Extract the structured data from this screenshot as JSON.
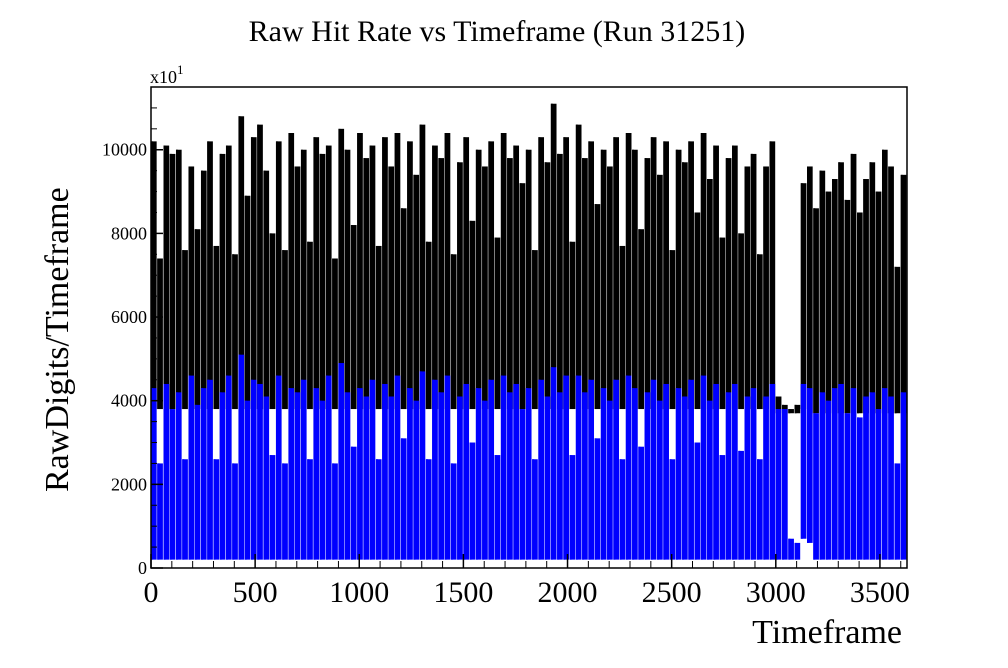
{
  "chart_data": {
    "type": "bar",
    "title": "Raw Hit Rate vs Timeframe (Run 31251)",
    "xlabel": "Timeframe",
    "ylabel": "RawDigits/Timeframe",
    "y_multiplier": "x10",
    "y_multiplier_exp": "1",
    "xlim": [
      0,
      3630
    ],
    "ylim": [
      0,
      11500
    ],
    "xticks": [
      0,
      500,
      1000,
      1500,
      2000,
      2500,
      3000,
      3500
    ],
    "xtick_labels": [
      "0",
      "500",
      "1000",
      "1500",
      "2000",
      "2500",
      "3000",
      "3500"
    ],
    "yticks": [
      0,
      2000,
      4000,
      6000,
      8000,
      10000
    ],
    "ytick_labels": [
      "0",
      "2000",
      "4000",
      "6000",
      "8000",
      "10000"
    ],
    "grid": false,
    "legend": null,
    "series": [
      {
        "color": "#000000",
        "x": [
          0,
          30,
          60,
          90,
          120,
          150,
          180,
          210,
          240,
          270,
          300,
          330,
          360,
          390,
          420,
          450,
          480,
          510,
          540,
          570,
          600,
          630,
          660,
          690,
          720,
          750,
          780,
          810,
          840,
          870,
          900,
          930,
          960,
          990,
          1020,
          1050,
          1080,
          1110,
          1140,
          1170,
          1200,
          1230,
          1260,
          1290,
          1320,
          1350,
          1380,
          1410,
          1440,
          1470,
          1500,
          1530,
          1560,
          1590,
          1620,
          1650,
          1680,
          1710,
          1740,
          1770,
          1800,
          1830,
          1860,
          1890,
          1920,
          1950,
          1980,
          2010,
          2040,
          2070,
          2100,
          2130,
          2160,
          2190,
          2220,
          2250,
          2280,
          2310,
          2340,
          2370,
          2400,
          2430,
          2460,
          2490,
          2520,
          2550,
          2580,
          2610,
          2640,
          2670,
          2700,
          2730,
          2760,
          2790,
          2820,
          2850,
          2880,
          2910,
          2940,
          2970,
          3000,
          3030,
          3060,
          3090,
          3120,
          3150,
          3180,
          3210,
          3240,
          3270,
          3300,
          3330,
          3360,
          3390,
          3420,
          3450,
          3480,
          3510,
          3540,
          3570,
          3600
        ],
        "min": [
          3800,
          3800,
          3800,
          3800,
          3800,
          3800,
          3800,
          3800,
          3800,
          3800,
          3800,
          3800,
          3800,
          3800,
          3800,
          3800,
          3800,
          3800,
          3800,
          3800,
          3800,
          3800,
          3800,
          3800,
          3800,
          3800,
          3800,
          3800,
          3800,
          3800,
          3800,
          3800,
          3800,
          3800,
          3800,
          3800,
          3800,
          3800,
          3800,
          3800,
          3800,
          3800,
          3800,
          3800,
          3800,
          3800,
          3800,
          3800,
          3800,
          3800,
          3800,
          3800,
          3800,
          3800,
          3800,
          3800,
          3800,
          3800,
          3800,
          3800,
          3800,
          3800,
          3800,
          3800,
          3800,
          3800,
          3800,
          3800,
          3800,
          3800,
          3800,
          3800,
          3800,
          3800,
          3800,
          3800,
          3800,
          3800,
          3800,
          3800,
          3800,
          3800,
          3800,
          3800,
          3800,
          3800,
          3800,
          3800,
          3800,
          3800,
          3800,
          3800,
          3800,
          3800,
          3800,
          3800,
          3800,
          3800,
          3800,
          3800,
          3700,
          3700,
          3700,
          3700,
          3800,
          3700,
          3700,
          3700,
          3700,
          3700,
          3700,
          3700,
          3700,
          3700,
          3700,
          3700,
          3700,
          3700,
          3700,
          3700,
          3700
        ],
        "max": [
          10200,
          7400,
          10100,
          9900,
          10000,
          7600,
          9600,
          8100,
          9500,
          10200,
          7700,
          9900,
          10100,
          7500,
          10800,
          8900,
          10300,
          10600,
          9500,
          8000,
          10200,
          7600,
          10400,
          9600,
          10000,
          7800,
          10300,
          9900,
          10100,
          7400,
          10500,
          10000,
          8200,
          10400,
          9800,
          10100,
          7700,
          10300,
          9600,
          10400,
          8600,
          10200,
          9400,
          10600,
          7800,
          10100,
          9800,
          10400,
          7500,
          9700,
          10300,
          8300,
          10000,
          9600,
          10200,
          7900,
          10400,
          9800,
          10100,
          9200,
          10000,
          7600,
          10300,
          9700,
          11100,
          9900,
          10300,
          7800,
          10600,
          9800,
          10200,
          8700,
          10000,
          9600,
          10300,
          7700,
          10400,
          10000,
          8100,
          9800,
          10300,
          9400,
          10200,
          7600,
          10000,
          9700,
          10200,
          8500,
          10400,
          9300,
          10100,
          7900,
          9800,
          10100,
          8000,
          9600,
          9900,
          7500,
          9600,
          10200,
          4100,
          3900,
          3800,
          3900,
          9200,
          9600,
          8600,
          9500,
          9000,
          9300,
          9700,
          8800,
          9900,
          8500,
          9300,
          9700,
          9000,
          10000,
          9600,
          7200,
          9400
        ]
      },
      {
        "color": "#0000ff",
        "x": [
          0,
          30,
          60,
          90,
          120,
          150,
          180,
          210,
          240,
          270,
          300,
          330,
          360,
          390,
          420,
          450,
          480,
          510,
          540,
          570,
          600,
          630,
          660,
          690,
          720,
          750,
          780,
          810,
          840,
          870,
          900,
          930,
          960,
          990,
          1020,
          1050,
          1080,
          1110,
          1140,
          1170,
          1200,
          1230,
          1260,
          1290,
          1320,
          1350,
          1380,
          1410,
          1440,
          1470,
          1500,
          1530,
          1560,
          1590,
          1620,
          1650,
          1680,
          1710,
          1740,
          1770,
          1800,
          1830,
          1860,
          1890,
          1920,
          1950,
          1980,
          2010,
          2040,
          2070,
          2100,
          2130,
          2160,
          2190,
          2220,
          2250,
          2280,
          2310,
          2340,
          2370,
          2400,
          2430,
          2460,
          2490,
          2520,
          2550,
          2580,
          2610,
          2640,
          2670,
          2700,
          2730,
          2760,
          2790,
          2820,
          2850,
          2880,
          2910,
          2940,
          2970,
          3000,
          3030,
          3060,
          3090,
          3120,
          3150,
          3180,
          3210,
          3240,
          3270,
          3300,
          3330,
          3360,
          3390,
          3420,
          3450,
          3480,
          3510,
          3540,
          3570,
          3600
        ],
        "min": [
          200,
          200,
          200,
          200,
          200,
          200,
          200,
          200,
          200,
          200,
          200,
          200,
          200,
          200,
          200,
          200,
          200,
          200,
          200,
          200,
          200,
          200,
          200,
          200,
          200,
          200,
          200,
          200,
          200,
          200,
          200,
          200,
          200,
          200,
          200,
          200,
          200,
          200,
          200,
          200,
          200,
          200,
          200,
          200,
          200,
          200,
          200,
          200,
          200,
          200,
          200,
          200,
          200,
          200,
          200,
          200,
          200,
          200,
          200,
          200,
          200,
          200,
          200,
          200,
          200,
          200,
          200,
          200,
          200,
          200,
          200,
          200,
          200,
          200,
          200,
          200,
          200,
          200,
          200,
          200,
          200,
          200,
          200,
          200,
          200,
          200,
          200,
          200,
          200,
          200,
          200,
          200,
          200,
          200,
          200,
          200,
          200,
          200,
          200,
          200,
          200,
          200,
          200,
          200,
          700,
          600,
          200,
          200,
          200,
          200,
          200,
          200,
          200,
          200,
          200,
          200,
          200,
          200,
          200,
          200,
          200
        ],
        "max": [
          4300,
          2500,
          4400,
          3800,
          4200,
          2600,
          4600,
          3900,
          4300,
          4500,
          2600,
          4200,
          4600,
          2500,
          5100,
          4000,
          4500,
          4400,
          4100,
          2700,
          4600,
          2500,
          4300,
          4200,
          4500,
          2600,
          4300,
          4000,
          4600,
          2500,
          4900,
          4200,
          2900,
          4300,
          4100,
          4500,
          2600,
          4400,
          4100,
          4600,
          3100,
          4300,
          4000,
          4700,
          2600,
          4500,
          4200,
          4600,
          2500,
          4100,
          4400,
          3000,
          4300,
          4000,
          4500,
          2700,
          4600,
          4200,
          4400,
          3800,
          4300,
          2600,
          4500,
          4100,
          4800,
          4200,
          4600,
          2700,
          4600,
          4200,
          4500,
          3100,
          4300,
          4000,
          4500,
          2600,
          4600,
          4300,
          2900,
          4200,
          4500,
          4000,
          4400,
          2600,
          4300,
          4100,
          4500,
          3000,
          4600,
          4000,
          4400,
          2700,
          4200,
          4400,
          2800,
          4100,
          4300,
          2600,
          4100,
          4400,
          3800,
          3800,
          700,
          600,
          4400,
          4300,
          3700,
          4200,
          4000,
          4300,
          4400,
          3700,
          4300,
          3600,
          4100,
          4200,
          3800,
          4300,
          4100,
          2500,
          4200
        ]
      }
    ]
  }
}
